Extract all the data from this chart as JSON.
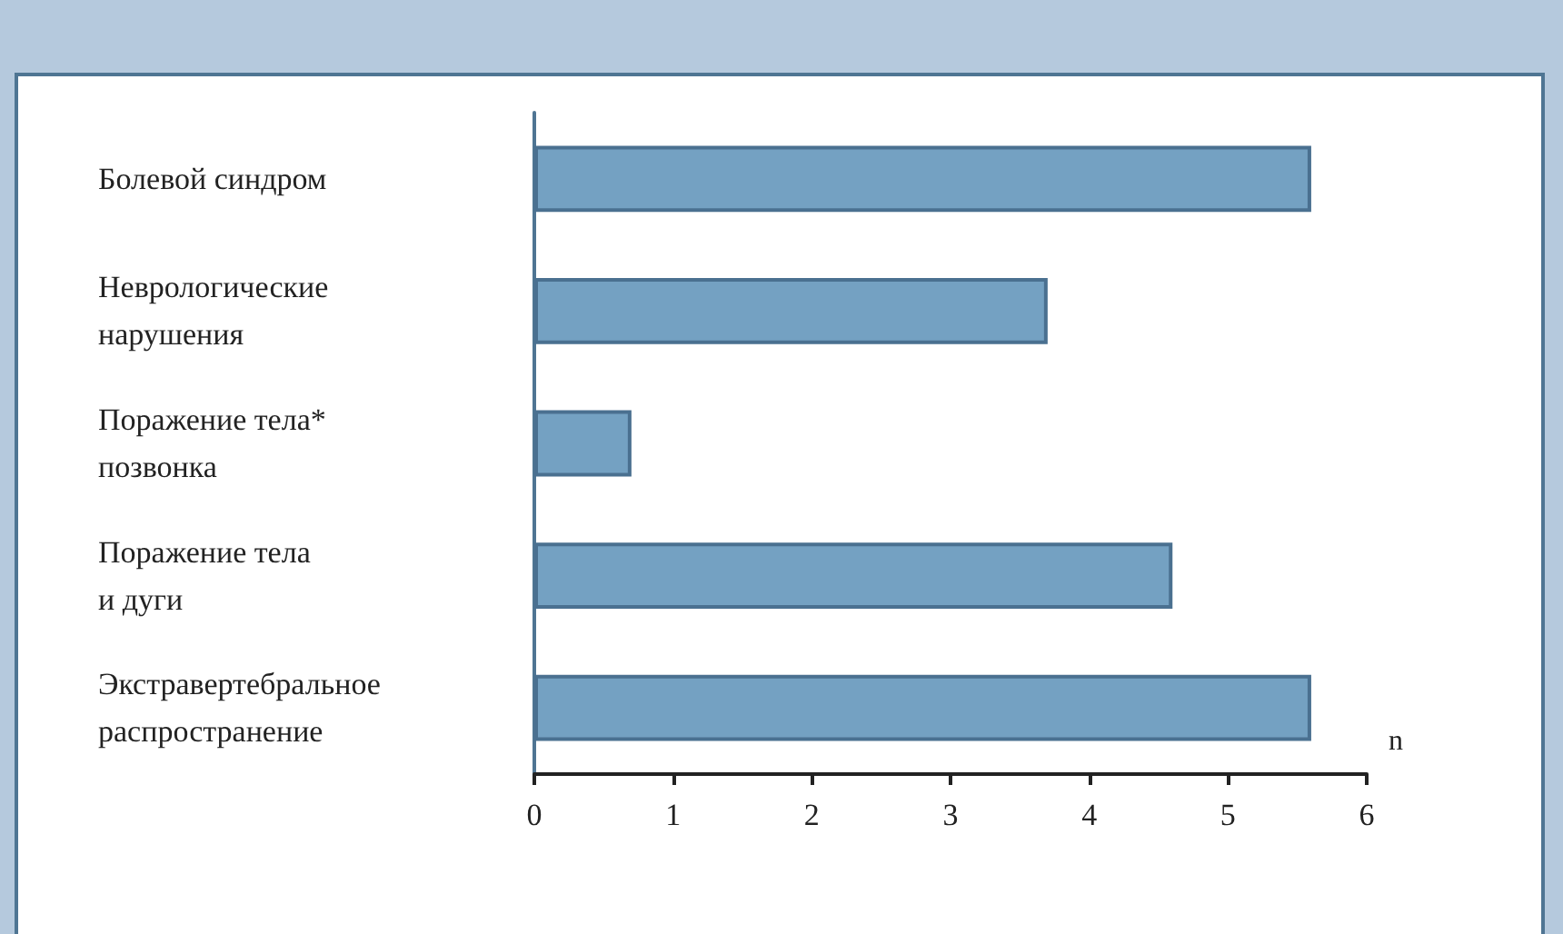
{
  "chart_data": {
    "type": "bar",
    "orientation": "horizontal",
    "categories": [
      "Болевой синдром",
      "Неврологические\nнарушения",
      "Поражение тела*\nпозвонка",
      "Поражение тела\nи дуги",
      "Экстравертебральное\nраспространение"
    ],
    "values": [
      5.6,
      3.7,
      0.7,
      4.6,
      5.6
    ],
    "color": "#74a1c2",
    "xlabel": "n",
    "xlim": [
      0,
      6
    ],
    "xticks": [
      0,
      1,
      2,
      3,
      4,
      5,
      6
    ],
    "grid": false
  }
}
